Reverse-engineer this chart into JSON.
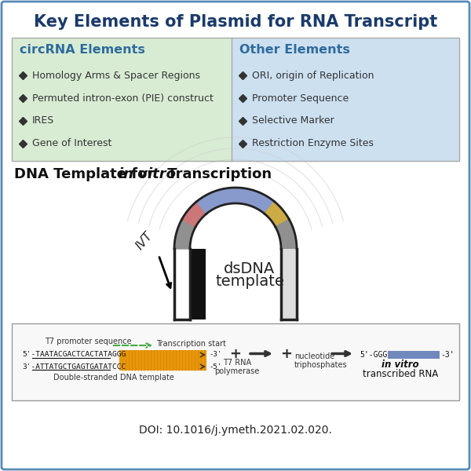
{
  "title": "Key Elements of Plasmid for RNA Transcript",
  "title_color": "#1a3a6b",
  "title_fontsize": 15,
  "bg_color": "#ffffff",
  "border_color": "#5a8ab5",
  "left_box_color": "#d8ecd4",
  "right_box_color": "#cce0f0",
  "left_header": "circRNA Elements",
  "right_header": "Other Elements",
  "header_color": "#2e6b9e",
  "left_items": [
    "Homology Arms & Spacer Regions",
    "Permuted intron-exon (PIE) construct",
    "IRES",
    "Gene of Interest"
  ],
  "right_items": [
    "ORI, origin of Replication",
    "Promoter Sequence",
    "Selective Marker",
    "Restriction Enzyme Sites"
  ],
  "item_color": "#333333",
  "diamond_color": "#333333",
  "section2_color": "#111111",
  "section2_fontsize": 13,
  "dsdna_text1": "dsDNA",
  "dsdna_text2": "template",
  "ivt_text": "IVT",
  "doi_text": "DOI: 10.1016/j.ymeth.2021.02.020.",
  "arc_color": "#222222",
  "arc_fill": "#8899cc",
  "seg_gray": "#909090",
  "seg_salmon": "#cc7777",
  "seg_yellow": "#ccaa44",
  "bottom_box_color": "#f8f8f8",
  "bottom_border": "#999999",
  "orange_bar": "#e8960a",
  "green_arrow": "#44aa44",
  "rna_bar_color": "#7088bb"
}
